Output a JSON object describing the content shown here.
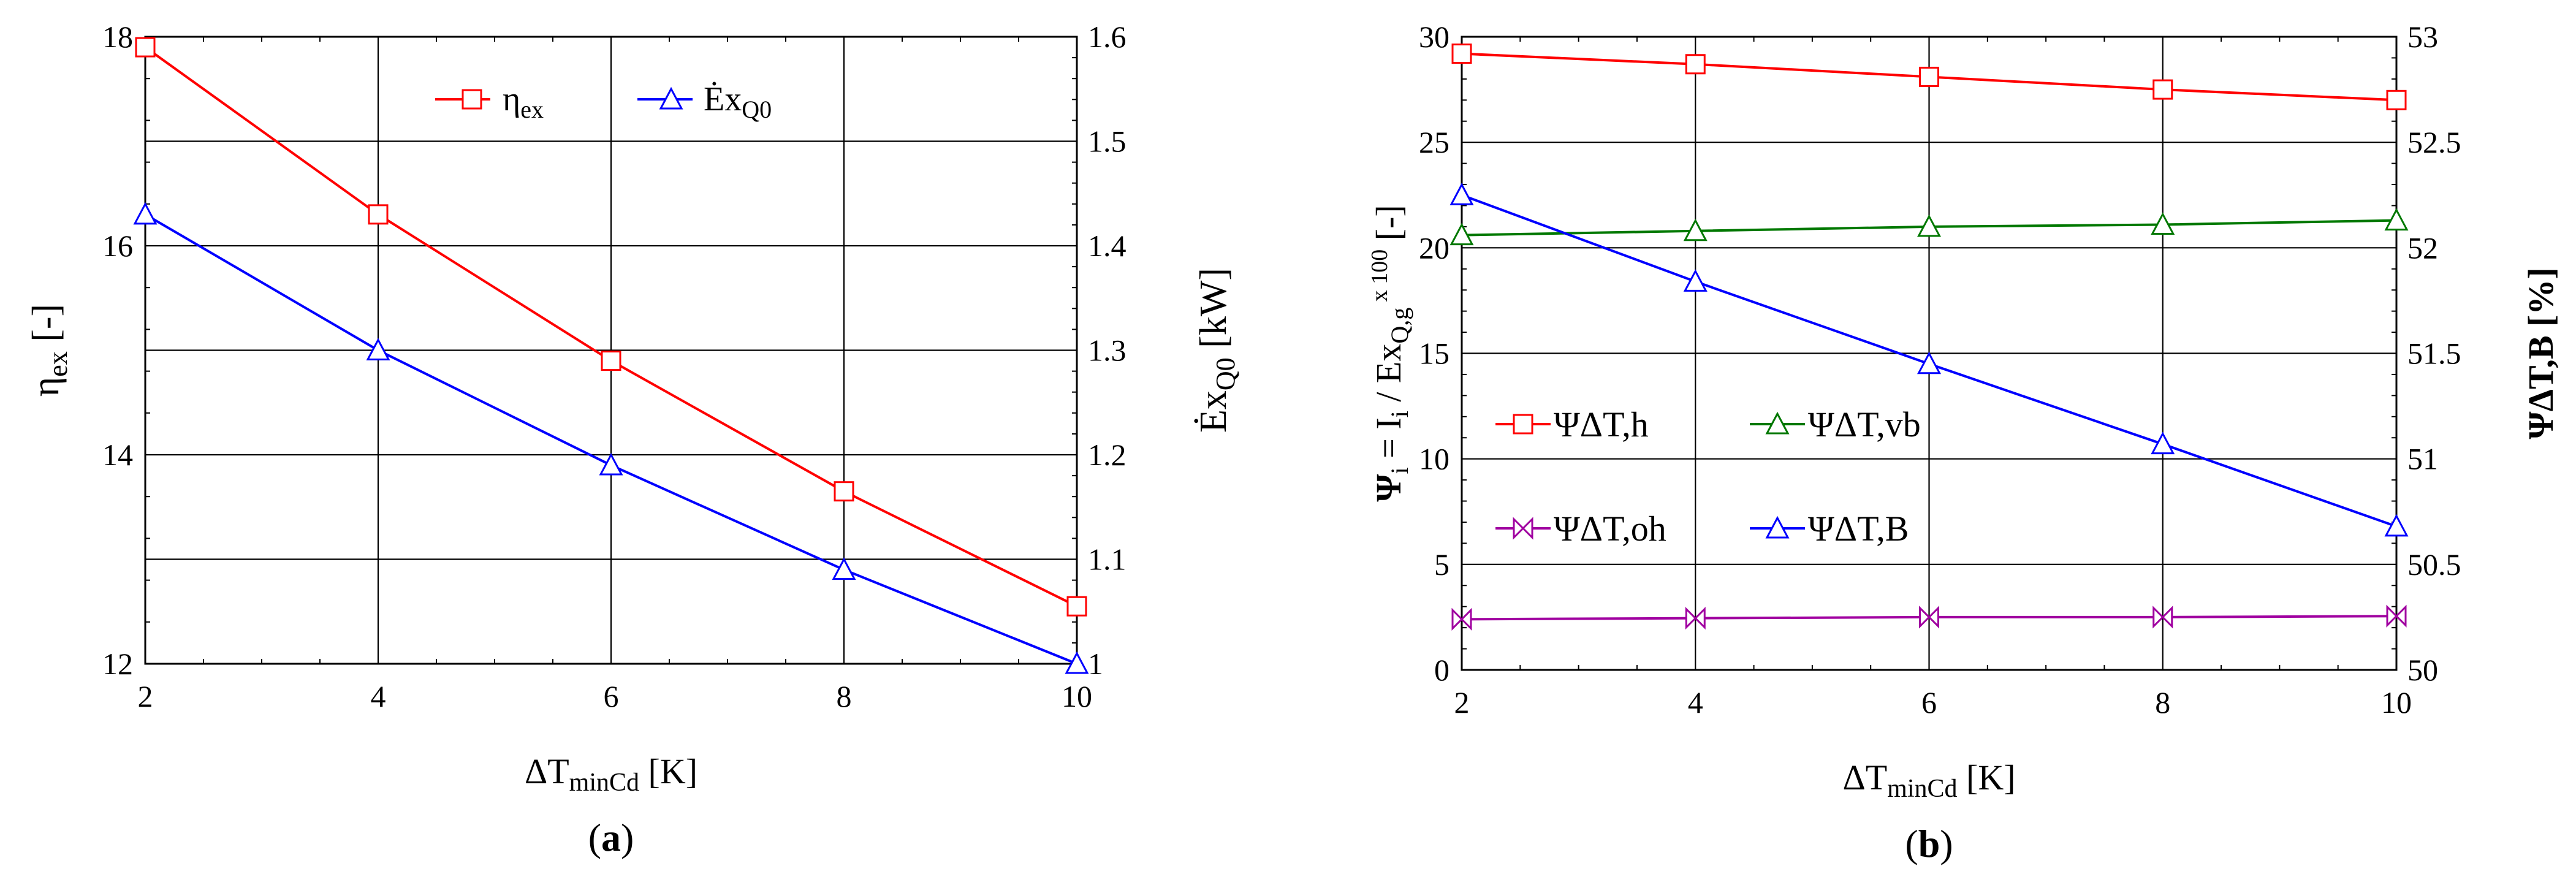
{
  "chart_data": [
    {
      "type": "line",
      "panel_label": "a",
      "xlabel": "ΔT",
      "xlabel_sub": "minCd",
      "xlabel_unit": "[K]",
      "ylabel": "η",
      "ylabel_sub": "ex",
      "ylabel_unit": "[-]",
      "y2label": "Ėx",
      "y2label_sub": "Q0",
      "y2label_unit": "[kW]",
      "xlim": [
        2,
        10
      ],
      "ylim": [
        12,
        18
      ],
      "y2lim": [
        1.0,
        1.6
      ],
      "xticks": [
        "2",
        "4",
        "6",
        "8",
        "10"
      ],
      "yticks": [
        "12",
        "14",
        "16",
        "18"
      ],
      "y2ticks": [
        "1",
        "1.1",
        "1.2",
        "1.3",
        "1.4",
        "1.5",
        "1.6"
      ],
      "grid": true,
      "legend_position": "top",
      "series": [
        {
          "name": "η",
          "name_sub": "ex",
          "axis": "left",
          "color": "#ff0000",
          "marker": "square",
          "x": [
            2,
            4,
            6,
            8,
            10
          ],
          "y": [
            17.9,
            16.3,
            14.9,
            13.65,
            12.55
          ]
        },
        {
          "name": "Ėx",
          "name_sub": "Q0",
          "axis": "right",
          "color": "#0000ff",
          "marker": "triangle",
          "x": [
            2,
            4,
            6,
            8,
            10
          ],
          "y": [
            1.43,
            1.3,
            1.19,
            1.09,
            1.0
          ]
        }
      ]
    },
    {
      "type": "line",
      "panel_label": "b",
      "xlabel": "ΔT",
      "xlabel_sub": "minCd",
      "xlabel_unit": "[K]",
      "ylabel": "Ψi = Ii / ExQ,g x 100 [-]",
      "ylabel_parts": {
        "psi": "Ψ",
        "i1": "i",
        "eq": " = I",
        "i2": "i",
        "mid": " / Ex",
        "qg": "Q,g",
        "x100": "x 100",
        "unit": " [-]"
      },
      "y2label": "ΨΔT,B [%]",
      "xlim": [
        2,
        10
      ],
      "ylim": [
        0,
        30
      ],
      "y2lim": [
        50,
        53
      ],
      "xticks": [
        "2",
        "4",
        "6",
        "8",
        "10"
      ],
      "yticks": [
        "0",
        "5",
        "10",
        "15",
        "20",
        "25",
        "30"
      ],
      "y2ticks": [
        "50",
        "50.5",
        "51",
        "51.5",
        "52",
        "52.5",
        "53"
      ],
      "grid": true,
      "legend_position": "middle-left",
      "series": [
        {
          "name": "ΨΔT,h",
          "axis": "left",
          "color": "#ff0000",
          "marker": "square",
          "x": [
            2,
            4,
            6,
            8,
            10
          ],
          "y": [
            29.2,
            28.7,
            28.1,
            27.5,
            27.0
          ]
        },
        {
          "name": "ΨΔT,vb",
          "axis": "left",
          "color": "#007800",
          "marker": "triangle",
          "x": [
            2,
            4,
            6,
            8,
            10
          ],
          "y": [
            20.6,
            20.8,
            21.0,
            21.1,
            21.3
          ]
        },
        {
          "name": "ΨΔT,oh",
          "axis": "left",
          "color": "#a000a0",
          "marker": "bowtie",
          "x": [
            2,
            4,
            6,
            8,
            10
          ],
          "y": [
            2.4,
            2.45,
            2.5,
            2.5,
            2.55
          ]
        },
        {
          "name": "ΨΔT,B",
          "axis": "right",
          "color": "#0000ff",
          "marker": "triangle",
          "x": [
            2,
            4,
            6,
            8,
            10
          ],
          "y": [
            52.25,
            51.84,
            51.45,
            51.07,
            50.68
          ]
        }
      ]
    }
  ]
}
